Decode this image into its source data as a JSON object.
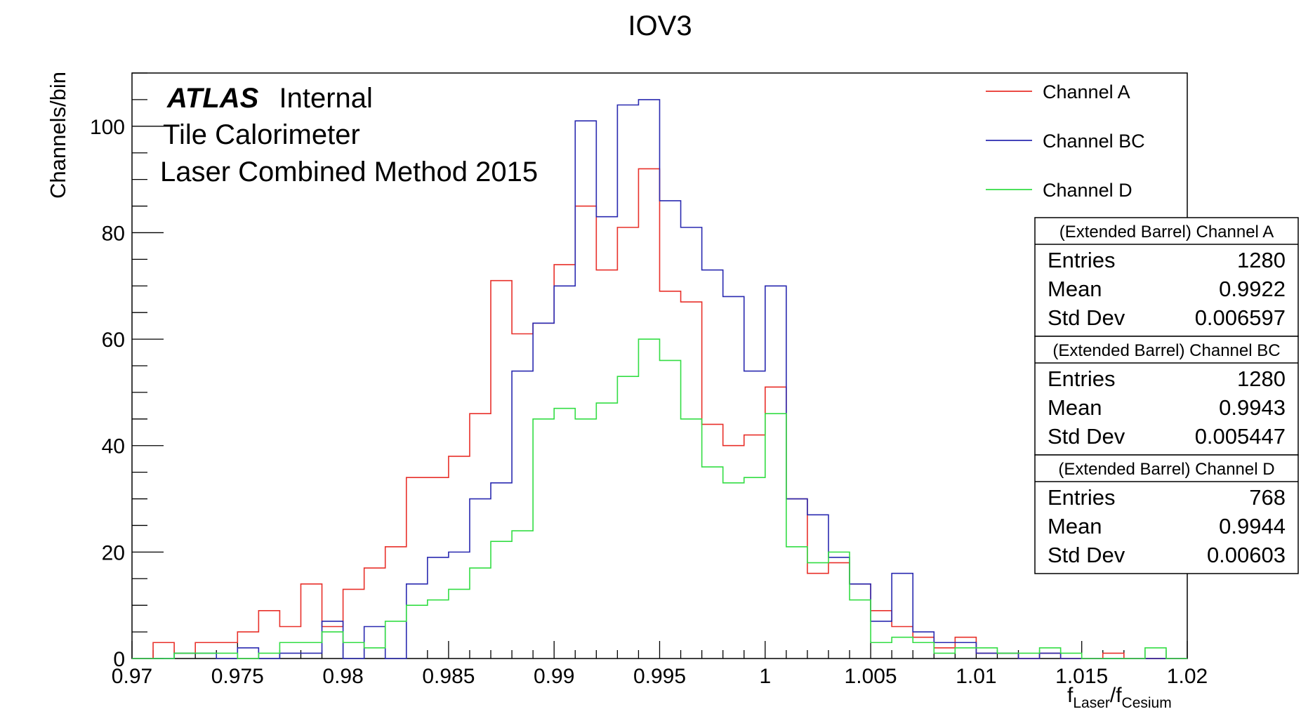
{
  "chart_data": {
    "type": "histogram-step",
    "title": "IOV3",
    "xlabel": {
      "main": "f",
      "sub1": "Laser",
      "slash": "/f",
      "sub2": "Cesium"
    },
    "ylabel": "Channels/bin",
    "xlim": [
      0.97,
      1.02
    ],
    "ylim": [
      0,
      110
    ],
    "bin_width": 0.001,
    "x_ticks": [
      {
        "value": 0.97,
        "label": "0.97"
      },
      {
        "value": 0.975,
        "label": "0.975"
      },
      {
        "value": 0.98,
        "label": "0.98"
      },
      {
        "value": 0.985,
        "label": "0.985"
      },
      {
        "value": 0.99,
        "label": "0.99"
      },
      {
        "value": 0.995,
        "label": "0.995"
      },
      {
        "value": 1.0,
        "label": "1"
      },
      {
        "value": 1.005,
        "label": "1.005"
      },
      {
        "value": 1.01,
        "label": "1.01"
      },
      {
        "value": 1.015,
        "label": "1.015"
      },
      {
        "value": 1.02,
        "label": "1.02"
      }
    ],
    "y_ticks": [
      {
        "value": 0,
        "label": "0"
      },
      {
        "value": 20,
        "label": "20"
      },
      {
        "value": 40,
        "label": "40"
      },
      {
        "value": 60,
        "label": "60"
      },
      {
        "value": 80,
        "label": "80"
      },
      {
        "value": 100,
        "label": "100"
      }
    ],
    "annotation": {
      "atlas": "ATLAS",
      "status": "Internal",
      "line2": "Tile Calorimeter",
      "line3": "Laser Combined Method 2015"
    },
    "legend_position": "top-right",
    "series": [
      {
        "name": "Channel A",
        "color": "#e8302a",
        "values": [
          0,
          3,
          1,
          3,
          3,
          5,
          9,
          6,
          14,
          6,
          13,
          17,
          21,
          34,
          34,
          38,
          46,
          71,
          61,
          63,
          74,
          85,
          73,
          81,
          92,
          69,
          67,
          44,
          40,
          42,
          51,
          30,
          16,
          18,
          14,
          9,
          6,
          4,
          2,
          4,
          1,
          1,
          0,
          1,
          0,
          0,
          1,
          0,
          0,
          0
        ]
      },
      {
        "name": "Channel BC",
        "color": "#2a2ab0",
        "values": [
          0,
          0,
          1,
          1,
          0,
          2,
          0,
          1,
          1,
          7,
          0,
          6,
          0,
          14,
          19,
          20,
          30,
          33,
          54,
          63,
          70,
          101,
          83,
          104,
          105,
          86,
          81,
          73,
          68,
          54,
          70,
          30,
          27,
          19,
          14,
          7,
          16,
          5,
          3,
          3,
          1,
          1,
          0,
          1,
          0,
          0,
          0,
          0,
          0,
          0
        ]
      },
      {
        "name": "Channel D",
        "color": "#33dd44",
        "values": [
          0,
          0,
          1,
          1,
          1,
          0,
          1,
          3,
          3,
          5,
          3,
          2,
          7,
          10,
          11,
          13,
          17,
          22,
          24,
          45,
          47,
          45,
          48,
          53,
          60,
          56,
          45,
          36,
          33,
          34,
          46,
          21,
          18,
          20,
          11,
          3,
          4,
          3,
          1,
          2,
          2,
          1,
          1,
          2,
          1,
          0,
          0,
          0,
          2,
          0
        ]
      }
    ],
    "stats_boxes": [
      {
        "title": "(Extended Barrel) Channel A",
        "rows": [
          {
            "label": "Entries",
            "value": "1280"
          },
          {
            "label": "Mean",
            "value": "0.9922"
          },
          {
            "label": "Std Dev",
            "value": "0.006597"
          }
        ]
      },
      {
        "title": "(Extended Barrel) Channel BC",
        "rows": [
          {
            "label": "Entries",
            "value": "1280"
          },
          {
            "label": "Mean",
            "value": "0.9943"
          },
          {
            "label": "Std Dev",
            "value": "0.005447"
          }
        ]
      },
      {
        "title": "(Extended Barrel) Channel D",
        "rows": [
          {
            "label": "Entries",
            "value": "768"
          },
          {
            "label": "Mean",
            "value": "0.9944"
          },
          {
            "label": "Std Dev",
            "value": "0.00603"
          }
        ]
      }
    ]
  }
}
